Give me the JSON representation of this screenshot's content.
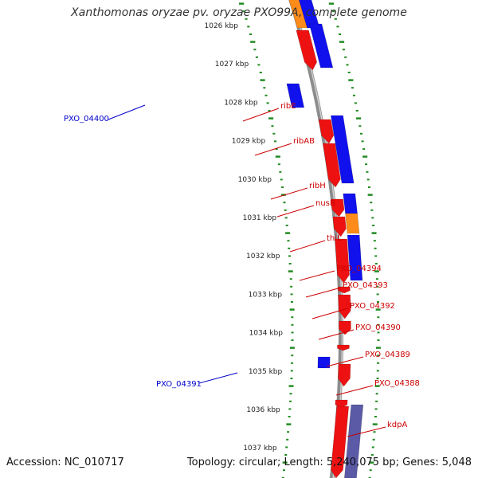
{
  "title": "Xanthomonas oryzae pv. oryzae PXO99A, complete genome",
  "footer": {
    "accession": "Accession: NC_010717",
    "summary": "Topology: circular; Length: 5,240,075 bp; Genes: 5,048"
  },
  "colors": {
    "forward_cds": "#ee1111",
    "reverse_cds": "#1111ee",
    "rna": "#ff8c1a",
    "other": "#5a5aa6",
    "backbone": "#8c8c8c",
    "ticks": "#228b22",
    "label_forward": "#cc0000",
    "label_reverse": "#0000cc"
  },
  "ruler": [
    "1026 kbp",
    "1027 kbp",
    "1028 kbp",
    "1029 kbp",
    "1030 kbp",
    "1031 kbp",
    "1032 kbp",
    "1033 kbp",
    "1034 kbp",
    "1035 kbp",
    "1036 kbp",
    "1037 kbp"
  ],
  "gene_labels": [
    {
      "name": "ribE",
      "strand": "forward"
    },
    {
      "name": "ribAB",
      "strand": "forward"
    },
    {
      "name": "ribH",
      "strand": "forward"
    },
    {
      "name": "nusB",
      "strand": "forward"
    },
    {
      "name": "thiL",
      "strand": "forward"
    },
    {
      "name": "PXO_04394",
      "strand": "forward"
    },
    {
      "name": "PXO_04393",
      "strand": "forward"
    },
    {
      "name": "PXO_04392",
      "strand": "forward"
    },
    {
      "name": "PXO_04390",
      "strand": "forward"
    },
    {
      "name": "PXO_04389",
      "strand": "forward"
    },
    {
      "name": "PXO_04388",
      "strand": "forward"
    },
    {
      "name": "kdpA",
      "strand": "forward"
    },
    {
      "name": "PXO_04400",
      "strand": "reverse"
    },
    {
      "name": "PXO_04391",
      "strand": "reverse"
    }
  ]
}
